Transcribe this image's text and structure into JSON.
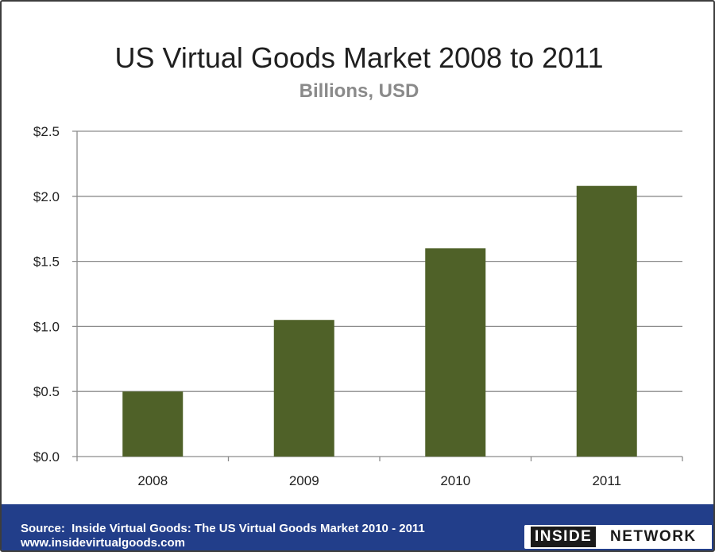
{
  "chart_data": {
    "type": "bar",
    "title": "US Virtual Goods Market 2008 to 2011",
    "subtitle": "Billions, USD",
    "categories": [
      "2008",
      "2009",
      "2010",
      "2011"
    ],
    "values": [
      0.5,
      1.05,
      1.6,
      2.08
    ],
    "ylim": [
      0,
      2.5
    ],
    "yticks": [
      0,
      0.5,
      1.0,
      1.5,
      2.0,
      2.5
    ],
    "ytick_labels": [
      "$0.0",
      "$0.5",
      "$1.0",
      "$1.5",
      "$2.0",
      "$2.5"
    ],
    "xlabel": "",
    "ylabel": "",
    "grid": true,
    "bar_color": "#4f6128"
  },
  "footer": {
    "source": "Source:  Inside Virtual Goods: The US Virtual Goods Market 2010 - 2011",
    "url": "www.insidevirtualgoods.com",
    "background": "#223e8a"
  },
  "logo": {
    "part1": "INSIDE",
    "part2": "NETWORK"
  }
}
